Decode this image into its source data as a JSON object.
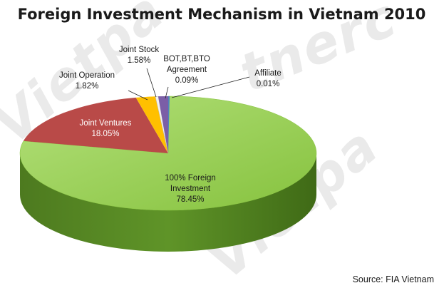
{
  "chart_data": {
    "type": "pie",
    "title": "Foreign Investment Mechanism in Vietnam 2010",
    "source": "Source: FIA Vietnam",
    "slices": [
      {
        "label": [
          "100% Foreign",
          "Investment"
        ],
        "value_label": "78.45%",
        "value": 78.45,
        "color": "#92d050",
        "label_color": "dark"
      },
      {
        "label": [
          "Joint Ventures"
        ],
        "value_label": "18.05%",
        "value": 18.05,
        "color": "#b94a48",
        "label_color": "light"
      },
      {
        "label": [
          "Joint Operation"
        ],
        "value_label": "1.82%",
        "value": 1.82,
        "color": "#ffc000",
        "label_color": "dark"
      },
      {
        "label": [
          "Joint Stock"
        ],
        "value_label": "1.58%",
        "value": 1.58,
        "color": "#f2f2f2",
        "label_color": "dark"
      },
      {
        "label": [
          "BOT,BT,BTO",
          "Agreement"
        ],
        "value_label": "0.09%",
        "value": 0.09,
        "color": "#7b5ea7",
        "label_color": "dark"
      },
      {
        "label": [
          "Affiliate"
        ],
        "value_label": "0.01%",
        "value": 0.01,
        "color": "#4f81bd",
        "label_color": "dark"
      }
    ],
    "legend": "none"
  },
  "watermark": "Vietpartners"
}
